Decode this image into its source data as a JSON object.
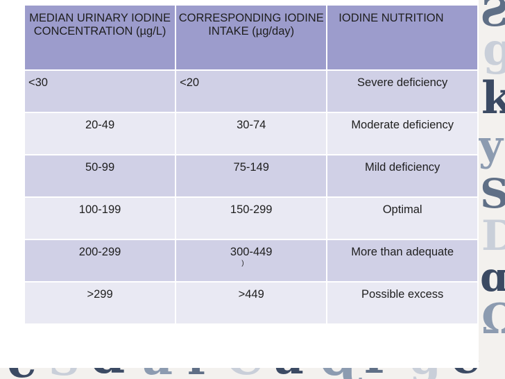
{
  "table": {
    "headers": [
      "MEDIAN URINARY IODINE CONCENTRATION (µg/L)",
      "CORRESPONDING IODINE INTAKE (µg/day)",
      "IODINE NUTRITION"
    ],
    "rows": [
      {
        "concentration": "<30",
        "intake": "<20",
        "nutrition": "Severe deficiency"
      },
      {
        "concentration": "20-49",
        "intake": "30-74",
        "nutrition": "Moderate deficiency"
      },
      {
        "concentration": "50-99",
        "intake": "75-149",
        "nutrition": "Mild deficiency"
      },
      {
        "concentration": "100-199",
        "intake": "150-299",
        "nutrition": "Optimal"
      },
      {
        "concentration": "200-299",
        "intake": "300-449",
        "nutrition": "More than adequate",
        "intake_note": ")"
      },
      {
        "concentration": ">299",
        "intake": ">449",
        "nutrition": "Possible excess"
      }
    ]
  },
  "colors": {
    "header_bg": "#9c9ccc",
    "row_dark": "#d0d0e6",
    "row_light": "#e9e9f3"
  }
}
